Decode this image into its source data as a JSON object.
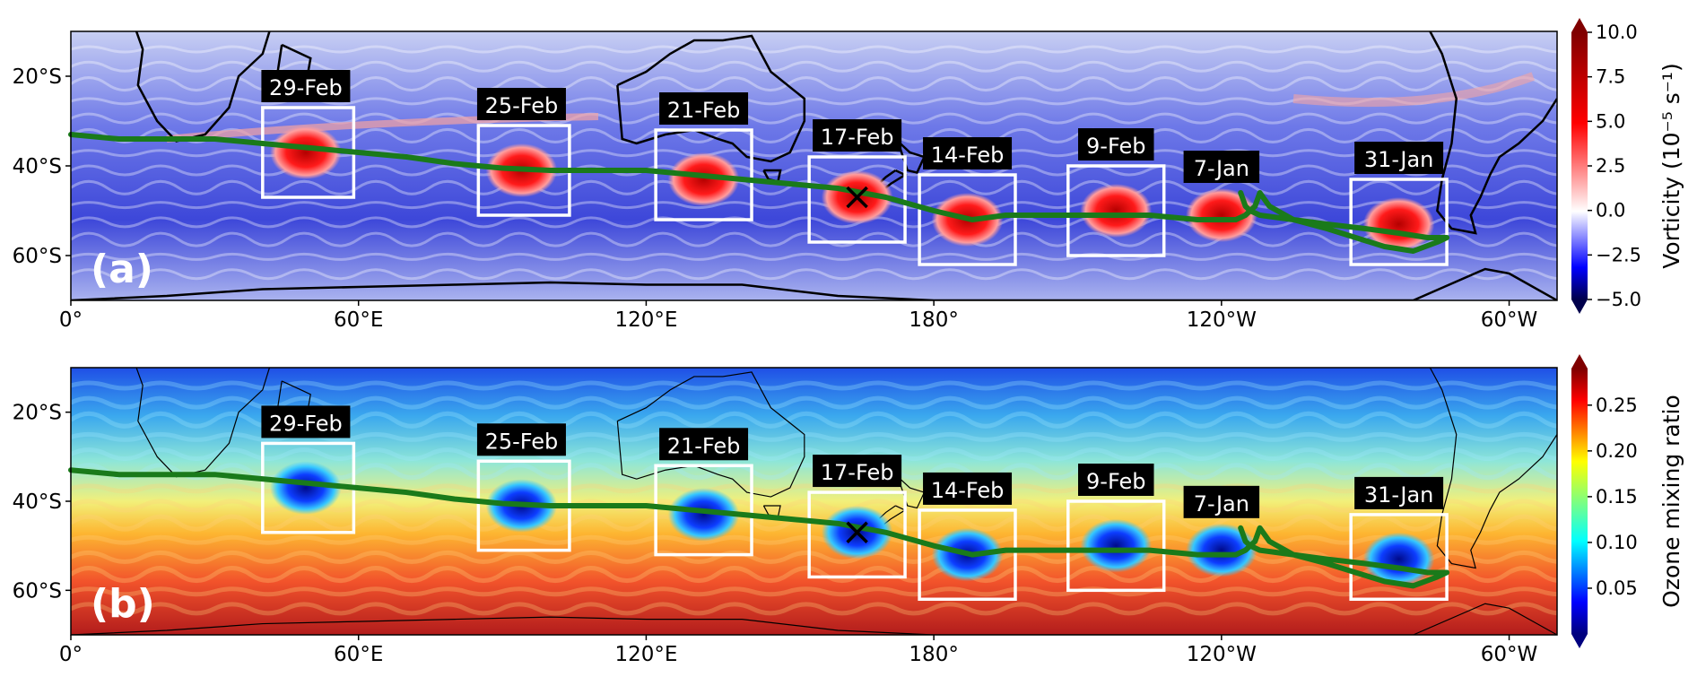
{
  "panels": [
    {
      "id": "a",
      "label": "(a)",
      "variable": "vorticity",
      "colorbar": {
        "label": "Vorticity (10⁻⁵ s⁻¹)",
        "ticks": [
          "10.0",
          "7.5",
          "5.0",
          "2.5",
          "0.0",
          "−2.5",
          "−5.0"
        ],
        "colormap": "seismic",
        "range": [
          -5.0,
          10.0
        ]
      }
    },
    {
      "id": "b",
      "label": "(b)",
      "variable": "ozone",
      "colorbar": {
        "label": "Ozone mixing ratio",
        "ticks": [
          "0.25",
          "0.20",
          "0.15",
          "0.10",
          "0.05"
        ],
        "colormap": "jet",
        "range": [
          0.0,
          0.29
        ]
      }
    }
  ],
  "map": {
    "lon_range": [
      0,
      310
    ],
    "lat_range": [
      -70,
      -10
    ],
    "x_ticks": [
      "0°",
      "60°E",
      "120°E",
      "180°",
      "120°W",
      "60°W"
    ],
    "y_ticks": [
      "20°S",
      "40°S",
      "60°S"
    ],
    "track_color": "#1a7a1a",
    "box_color": "#ffffff",
    "marker": "X"
  },
  "vortex_boxes": [
    {
      "date": "29-Feb",
      "lon_min": 40,
      "lon_max": 59,
      "lat_min": -47,
      "lat_max": -27,
      "center_lon": 49,
      "center_lat": -37
    },
    {
      "date": "25-Feb",
      "lon_min": 85,
      "lon_max": 104,
      "lat_min": -51,
      "lat_max": -31,
      "center_lon": 94,
      "center_lat": -41
    },
    {
      "date": "21-Feb",
      "lon_min": 122,
      "lon_max": 142,
      "lat_min": -52,
      "lat_max": -32,
      "center_lon": 132,
      "center_lat": -43
    },
    {
      "date": "17-Feb",
      "lon_min": 154,
      "lon_max": 174,
      "lat_min": -57,
      "lat_max": -38,
      "center_lon": 164,
      "center_lat": -47
    },
    {
      "date": "14-Feb",
      "lon_min": 177,
      "lon_max": 197,
      "lat_min": -62,
      "lat_max": -42,
      "center_lon": 187,
      "center_lat": -52
    },
    {
      "date": "9-Feb",
      "lon_min": 208,
      "lon_max": 228,
      "lat_min": -60,
      "lat_max": -40,
      "center_lon": 218,
      "center_lat": -50
    },
    {
      "date": "7-Jan",
      "lon_min": null,
      "lon_max": null,
      "lat_min": null,
      "lat_max": null,
      "center_lon": 240,
      "center_lat": -51
    },
    {
      "date": "31-Jan",
      "lon_min": 267,
      "lon_max": 287,
      "lat_min": -62,
      "lat_max": -43,
      "center_lon": 277,
      "center_lat": -53
    }
  ],
  "track": {
    "lon": [
      0,
      10,
      20,
      30,
      40,
      50,
      60,
      70,
      80,
      90,
      100,
      110,
      120,
      130,
      140,
      150,
      160,
      170,
      180,
      188,
      195,
      205,
      215,
      225,
      235,
      243,
      245,
      247,
      248,
      250,
      255,
      262,
      268,
      274,
      280,
      285,
      287,
      283,
      277,
      270,
      262,
      255,
      248,
      246,
      245,
      244
    ],
    "lat": [
      -33,
      -34,
      -34,
      -34,
      -35,
      -36,
      -37,
      -38,
      -39.5,
      -40.5,
      -41,
      -41,
      -41,
      -42,
      -43,
      -44,
      -45,
      -47,
      -50,
      -52,
      -51,
      -51,
      -51,
      -51,
      -52,
      -52,
      -51,
      -49,
      -46,
      -49,
      -52,
      -54,
      -56,
      -58,
      -59,
      -57,
      -56,
      -56,
      -55,
      -54,
      -53,
      -52,
      -51,
      -50,
      -49,
      -46
    ]
  },
  "cross_marker": {
    "lon": 164,
    "lat": -47
  }
}
